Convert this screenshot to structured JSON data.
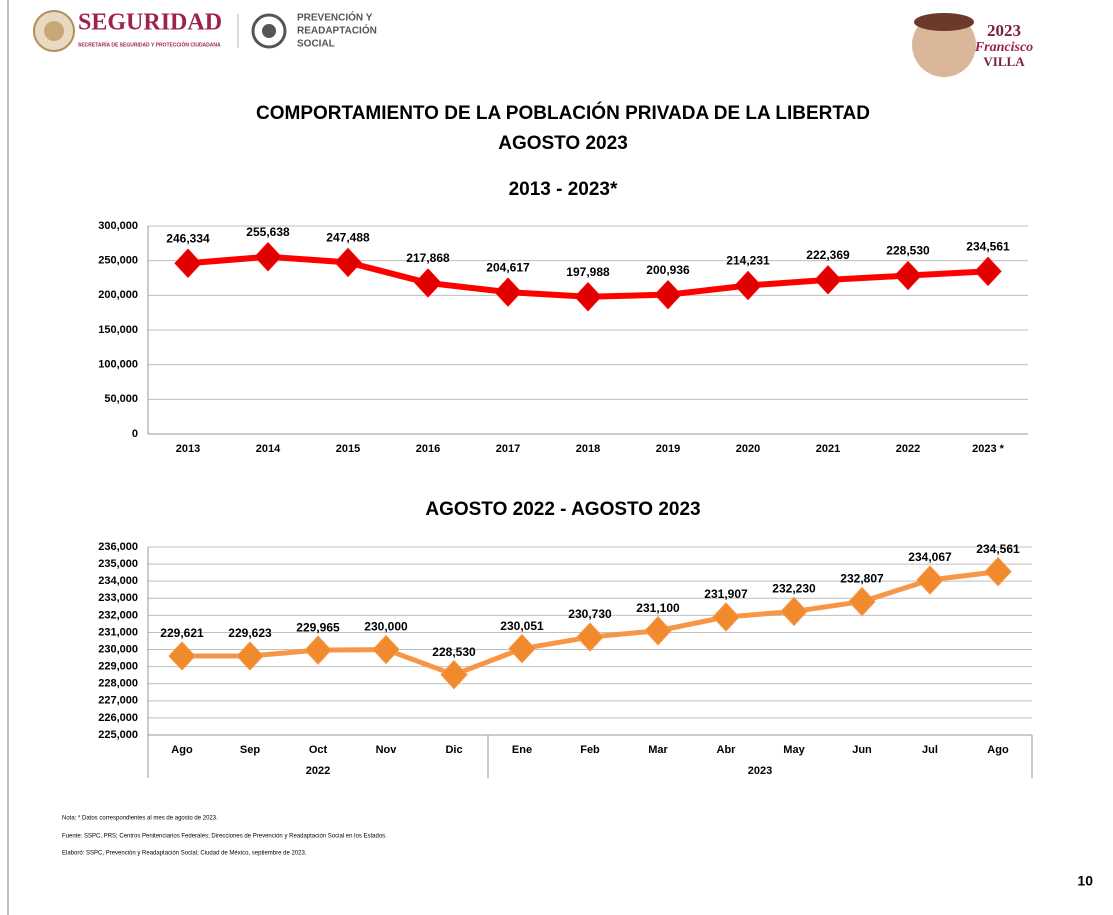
{
  "header": {
    "logo_main": "SEGURIDAD",
    "logo_sub": "SECRETARÍA DE SEGURIDAD Y PROTECCIÓN CIUDADANA",
    "logo_second": [
      "PREVENCIÓN Y",
      "READAPTACIÓN",
      "SOCIAL"
    ],
    "logo_right": [
      "2023",
      "Francisco",
      "VILLA"
    ]
  },
  "title": [
    "COMPORTAMIENTO DE LA POBLACIÓN PRIVADA DE LA LIBERTAD",
    "AGOSTO 2023"
  ],
  "chart_data": [
    {
      "type": "line",
      "title": "2013 - 2023*",
      "categories": [
        "2013",
        "2014",
        "2015",
        "2016",
        "2017",
        "2018",
        "2019",
        "2020",
        "2021",
        "2022",
        "2023 *"
      ],
      "values": [
        246334,
        255638,
        247488,
        217868,
        204617,
        197988,
        200936,
        214231,
        222369,
        228530,
        234561
      ],
      "value_labels": [
        "246,334",
        "255,638",
        "247,488",
        "217,868",
        "204,617",
        "197,988",
        "200,936",
        "214,231",
        "222,369",
        "228,530",
        "234,561"
      ],
      "color": "#ff0000",
      "marker_color": "#e00000",
      "ylim": [
        0,
        300000
      ],
      "yticks": [
        0,
        {
          "value": 50000,
          "label": "50,000"
        },
        {
          "value": 100000,
          "label": "100,000"
        },
        {
          "value": 150000,
          "label": "150,000"
        },
        {
          "value": 200000,
          "label": "200,000"
        },
        {
          "value": 250000,
          "label": "250,000"
        },
        {
          "value": 300000,
          "label": "300,000"
        }
      ],
      "grid": true
    },
    {
      "type": "line",
      "title": "AGOSTO 2022 - AGOSTO 2023",
      "category_groups": [
        {
          "name": "2022",
          "categories": [
            "Ago",
            "Sep",
            "Oct",
            "Nov",
            "Dic"
          ]
        },
        {
          "name": "2023",
          "categories": [
            "Ene",
            "Feb",
            "Mar",
            "Abr",
            "May",
            "Jun",
            "Jul",
            "Ago"
          ]
        }
      ],
      "values": [
        229621,
        229623,
        229965,
        230000,
        228530,
        230051,
        230730,
        231100,
        231907,
        232230,
        232807,
        234067,
        234561
      ],
      "value_labels": [
        "229,621",
        "229,623",
        "229,965",
        "230,000",
        "228,530",
        "230,051",
        "230,730",
        "231,100",
        "231,907",
        "232,230",
        "232,807",
        "234,067",
        "234,561"
      ],
      "color": "#f79646",
      "marker_color": "#f08a2c",
      "ylim": [
        225000,
        236000
      ],
      "yticks": [
        {
          "value": 225000,
          "label": "225,000"
        },
        {
          "value": 226000,
          "label": "226,000"
        },
        {
          "value": 227000,
          "label": "227,000"
        },
        {
          "value": 228000,
          "label": "228,000"
        },
        {
          "value": 229000,
          "label": "229,000"
        },
        {
          "value": 230000,
          "label": "230,000"
        },
        {
          "value": 231000,
          "label": "231,000"
        },
        {
          "value": 232000,
          "label": "232,000"
        },
        {
          "value": 233000,
          "label": "233,000"
        },
        {
          "value": 234000,
          "label": "234,000"
        },
        {
          "value": 235000,
          "label": "235,000"
        },
        {
          "value": 236000,
          "label": "236,000"
        }
      ],
      "grid": true
    }
  ],
  "notes": [
    "Nota: * Datos correspondientes al mes de agosto de 2023.",
    "Fuente: SSPC, PRS; Centros Penitenciarios Federales; Direcciones de Prevención y Readaptación Social en los Estados.",
    "Elaboró: SSPC, Prevención y Readaptación Social; Ciudad de México, septiembre de 2023."
  ],
  "page_number": "10"
}
